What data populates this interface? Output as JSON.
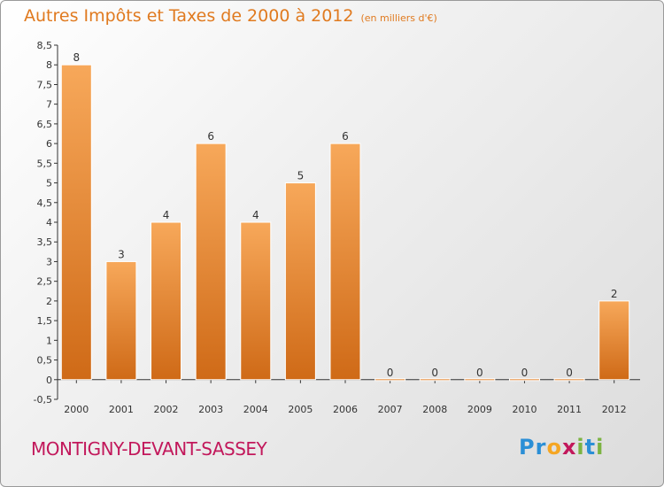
{
  "chart_data": {
    "type": "bar",
    "title": "Autres Impôts et Taxes de 2000 à 2012",
    "subtitle": "(en milliers d'€)",
    "categories": [
      "2000",
      "2001",
      "2002",
      "2003",
      "2004",
      "2005",
      "2006",
      "2007",
      "2008",
      "2009",
      "2010",
      "2011",
      "2012"
    ],
    "values": [
      8,
      3,
      4,
      6,
      4,
      5,
      6,
      0,
      0,
      0,
      0,
      0,
      2
    ],
    "ylim": [
      -0.5,
      8.5
    ],
    "yticks": [
      "-0,5",
      "0",
      "0,5",
      "1",
      "1,5",
      "2",
      "2,5",
      "3",
      "3,5",
      "4",
      "4,5",
      "5",
      "5,5",
      "6",
      "6,5",
      "7",
      "7,5",
      "8",
      "8,5"
    ],
    "xlabel": "",
    "ylabel": "",
    "grid": false,
    "bar_color": "#f08a2a"
  },
  "footer": {
    "town": "MONTIGNY-DEVANT-SASSEY",
    "logo_letters": [
      "P",
      "r",
      "o",
      "x",
      "i",
      "t",
      "i"
    ],
    "logo_colors": [
      "#2b8fd6",
      "#2b8fd6",
      "#f5a623",
      "#c2185b",
      "#7cb342",
      "#2b8fd6",
      "#7cb342"
    ]
  }
}
